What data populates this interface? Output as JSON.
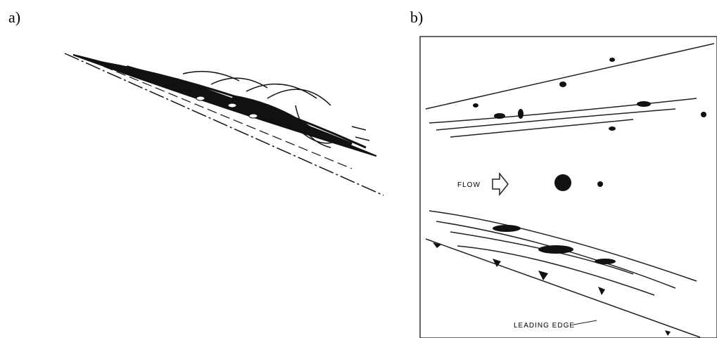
{
  "panels": {
    "a": {
      "label": "a)"
    },
    "b": {
      "label": "b)",
      "flow_label": "FLOW",
      "edge_label": "LEADING EDGE"
    }
  }
}
